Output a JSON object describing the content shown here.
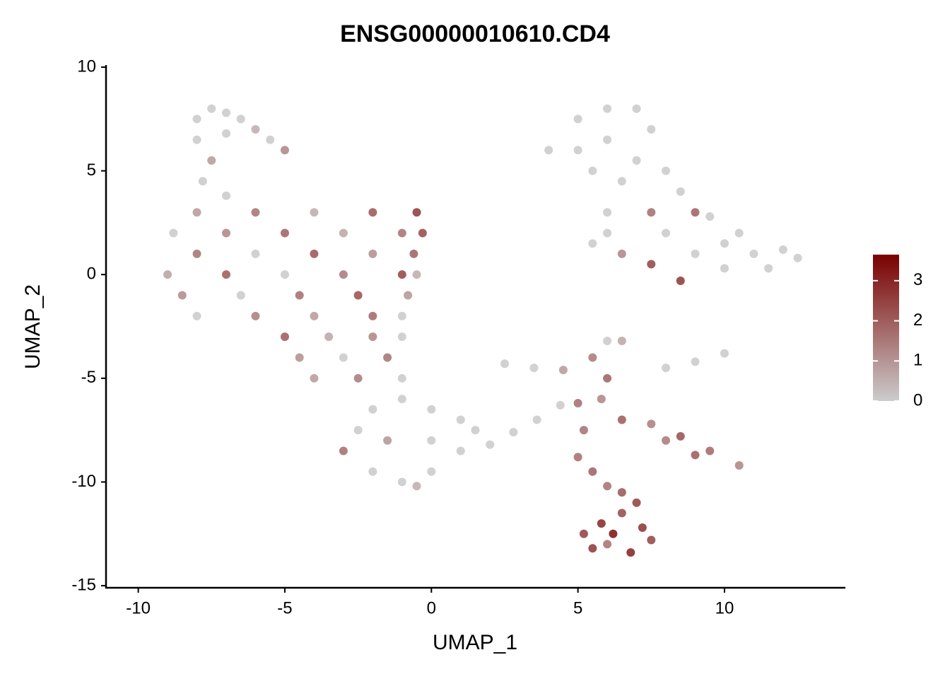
{
  "chart_data": {
    "type": "scatter",
    "title": "ENSG00000010610.CD4",
    "x_label": "UMAP_1",
    "y_label": "UMAP_2",
    "xlim": [
      -11.1,
      14.1
    ],
    "ylim": [
      -15.1,
      10.1
    ],
    "xticks": [
      -10,
      -5,
      0,
      5,
      10
    ],
    "yticks": [
      -15,
      -10,
      -5,
      0,
      5,
      10
    ],
    "x": [
      -8,
      -7.5,
      -7,
      -6.5,
      -6,
      -5.5,
      -5,
      -8,
      -7,
      -7.5,
      -7.8,
      -7,
      -8,
      -6,
      -4,
      -2,
      -0.5,
      -8.8,
      -7,
      -5,
      -3,
      -1,
      -0.3,
      -8,
      -6,
      -4,
      -2,
      -0.6,
      -9,
      -7,
      -5,
      -3,
      -1,
      -0.5,
      -8.5,
      -6.5,
      -4.5,
      -2.5,
      -0.8,
      -8,
      -6,
      -4,
      -2,
      -1,
      -5,
      -3.5,
      -2,
      -1,
      -4.5,
      -3,
      -1.5,
      -4,
      -2.5,
      -1,
      -2,
      -1,
      0,
      1,
      1.5,
      -2.5,
      -1.5,
      0,
      1,
      -3,
      -2,
      -1,
      0,
      -0.5,
      2,
      2.8,
      3.6,
      4.4,
      2.5,
      3.5,
      4.5,
      8,
      9,
      6,
      6.5,
      10,
      4,
      5,
      6,
      7,
      7.5,
      5,
      6,
      7,
      5.5,
      6.5,
      8,
      8.5,
      7.5,
      8,
      6,
      6.5,
      7.5,
      9,
      10,
      11,
      12,
      12.5,
      11.5,
      10,
      9,
      9.5,
      8.5,
      10.5,
      6,
      5.5,
      5.5,
      6,
      5.8,
      5,
      6.5,
      5.2,
      7.5,
      8.5,
      9.5,
      10.5,
      9,
      8,
      5,
      5.5,
      6,
      6.5,
      5.2,
      5.8,
      6.5,
      7.2,
      7.5,
      6,
      6.8,
      5.5,
      6.2,
      7
    ],
    "y": [
      7.5,
      8,
      7.8,
      7.5,
      7,
      6.5,
      6,
      6.5,
      6.8,
      5.5,
      4.5,
      3.8,
      3,
      3,
      3,
      3,
      3,
      2,
      2,
      2,
      2,
      2,
      2,
      1,
      1,
      1,
      1,
      1,
      0,
      0,
      0,
      0,
      0,
      0,
      -1,
      -1,
      -1,
      -1,
      -1,
      -2,
      -2,
      -2,
      -2,
      -2,
      -3,
      -3,
      -3,
      -3,
      -4,
      -4,
      -4,
      -5,
      -5,
      -5,
      -6.5,
      -6,
      -6.5,
      -7,
      -7.5,
      -7.5,
      -8,
      -8,
      -8.5,
      -8.5,
      -9.5,
      -10,
      -9.5,
      -10.2,
      -8.2,
      -7.6,
      -7,
      -6.3,
      -4.3,
      -4.5,
      -4.6,
      -4.5,
      -4.2,
      -3.2,
      -3.2,
      -3.8,
      6,
      7.5,
      8,
      8,
      7,
      6,
      6.5,
      5.5,
      5,
      4.5,
      5,
      4,
      3,
      2,
      2,
      1,
      0.5,
      1,
      1.5,
      1,
      1.2,
      0.8,
      0.3,
      0.3,
      3,
      2.8,
      -0.3,
      2,
      3,
      1.5,
      -4,
      -5,
      -6,
      -6.2,
      -7,
      -7.5,
      -7.2,
      -7.8,
      -8.5,
      -9.2,
      -8.7,
      -8,
      -8.8,
      -9.5,
      -10.2,
      -10.5,
      -12.5,
      -12,
      -11.5,
      -12.2,
      -12.8,
      -13,
      -13.4,
      -13.2,
      -12.5,
      -11
    ],
    "values": [
      0,
      0,
      0,
      0,
      0.5,
      0,
      1.2,
      0,
      0,
      0.8,
      0,
      0,
      0.8,
      1.5,
      0.5,
      2,
      2.5,
      0,
      1.2,
      1.8,
      0.6,
      1.5,
      2.2,
      1.5,
      0,
      2,
      1,
      1.8,
      0.7,
      1.9,
      0,
      1.4,
      2.3,
      0.5,
      1.1,
      0,
      1.6,
      2.1,
      0.9,
      0,
      1.3,
      0.8,
      1.7,
      0,
      1.9,
      0.6,
      1.2,
      0,
      1,
      0,
      1.5,
      0.8,
      1.4,
      0,
      0,
      0,
      0,
      0,
      0,
      0,
      0.9,
      0,
      0,
      1.6,
      0,
      0,
      0,
      0.5,
      0,
      0,
      0,
      0,
      0,
      0,
      0.8,
      0,
      0,
      0,
      0.6,
      0,
      0,
      0,
      0,
      0,
      0,
      0,
      0,
      0,
      0,
      0,
      0,
      0,
      1.6,
      0,
      0,
      1.2,
      2.3,
      0,
      0,
      0,
      0,
      0,
      0,
      0,
      1.8,
      0,
      2.5,
      0,
      0,
      0,
      1.4,
      1.8,
      1.2,
      1.6,
      1.9,
      1.5,
      1.3,
      2.1,
      1.7,
      1.2,
      1.9,
      1.4,
      1.6,
      1.8,
      1.5,
      2,
      2.4,
      2.8,
      2.2,
      2.6,
      2.3,
      1.5,
      2.9,
      2.5,
      3.2,
      2.4
    ],
    "colorbar": {
      "lim": [
        0,
        3.65
      ],
      "ticks": [
        0,
        1,
        2,
        3
      ],
      "colors": [
        "#cccccc",
        "#7a0000"
      ]
    }
  }
}
